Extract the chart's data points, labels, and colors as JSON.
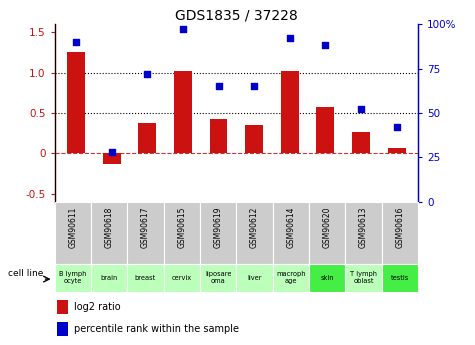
{
  "title": "GDS1835 / 37228",
  "gsm_labels": [
    "GSM90611",
    "GSM90618",
    "GSM90617",
    "GSM90615",
    "GSM90619",
    "GSM90612",
    "GSM90614",
    "GSM90620",
    "GSM90613",
    "GSM90616"
  ],
  "cell_labels": [
    "B lymph\nocyte",
    "brain",
    "breast",
    "cervix",
    "liposare\noma",
    "liver",
    "macroph\nage",
    "skin",
    "T lymph\noblast",
    "testis"
  ],
  "cell_colors": [
    "#bbffbb",
    "#bbffbb",
    "#bbffbb",
    "#bbffbb",
    "#bbffbb",
    "#bbffbb",
    "#bbffbb",
    "#44ee44",
    "#bbffbb",
    "#44ee44"
  ],
  "log2_ratio": [
    1.25,
    -0.13,
    0.38,
    1.02,
    0.42,
    0.35,
    1.02,
    0.58,
    0.27,
    0.07
  ],
  "percentile_rank": [
    90,
    28,
    72,
    97,
    65,
    65,
    92,
    88,
    52,
    42
  ],
  "ylim_left": [
    -0.6,
    1.6
  ],
  "ylim_right": [
    0,
    100
  ],
  "yticks_left": [
    -0.5,
    0,
    0.5,
    1.0,
    1.5
  ],
  "yticks_right": [
    0,
    25,
    50,
    75,
    100
  ],
  "ytick_labels_right": [
    "0",
    "25",
    "50",
    "75",
    "100%"
  ],
  "bar_color": "#cc1111",
  "dot_color": "#0000cc",
  "hline_dashed_color": "#cc3333",
  "dotted_lines": [
    0.5,
    1.0
  ],
  "bar_width": 0.5,
  "gsm_box_color": "#cccccc",
  "legend_red": "log2 ratio",
  "legend_blue": "percentile rank within the sample",
  "cell_line_label": "cell line"
}
